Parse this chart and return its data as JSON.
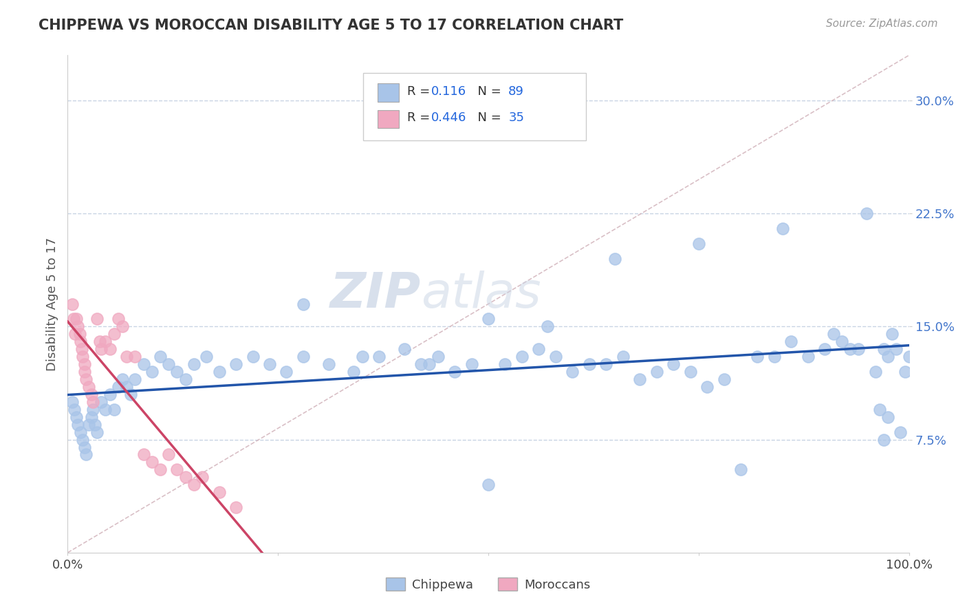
{
  "title": "CHIPPEWA VS MOROCCAN DISABILITY AGE 5 TO 17 CORRELATION CHART",
  "source_text": "Source: ZipAtlas.com",
  "ylabel": "Disability Age 5 to 17",
  "xlim": [
    0,
    1.0
  ],
  "ylim": [
    0.0,
    0.33
  ],
  "xticks": [
    0.0,
    0.25,
    0.5,
    0.75,
    1.0
  ],
  "xticklabels": [
    "0.0%",
    "",
    "",
    "",
    "100.0%"
  ],
  "yticks": [
    0.075,
    0.15,
    0.225,
    0.3
  ],
  "yticklabels": [
    "7.5%",
    "15.0%",
    "22.5%",
    "30.0%"
  ],
  "chippewa_color": "#a8c4e8",
  "moroccan_color": "#f0a8c0",
  "chippewa_line_color": "#2255aa",
  "moroccan_line_color": "#cc4466",
  "legend_R1": "0.116",
  "legend_N1": "89",
  "legend_R2": "0.446",
  "legend_N2": "35",
  "watermark_zip": "ZIP",
  "watermark_atlas": "atlas",
  "background_color": "#ffffff",
  "grid_color": "#c8d4e4",
  "title_color": "#333333",
  "source_color": "#999999",
  "tick_color": "#4477cc",
  "chippewa_x": [
    0.005,
    0.008,
    0.01,
    0.012,
    0.015,
    0.018,
    0.02,
    0.022,
    0.025,
    0.028,
    0.03,
    0.032,
    0.035,
    0.04,
    0.045,
    0.05,
    0.055,
    0.06,
    0.065,
    0.07,
    0.075,
    0.08,
    0.09,
    0.1,
    0.11,
    0.12,
    0.13,
    0.14,
    0.15,
    0.165,
    0.18,
    0.2,
    0.22,
    0.24,
    0.26,
    0.28,
    0.31,
    0.34,
    0.37,
    0.4,
    0.42,
    0.44,
    0.46,
    0.48,
    0.5,
    0.52,
    0.54,
    0.56,
    0.58,
    0.6,
    0.62,
    0.64,
    0.66,
    0.68,
    0.7,
    0.72,
    0.74,
    0.76,
    0.78,
    0.8,
    0.82,
    0.84,
    0.86,
    0.88,
    0.9,
    0.92,
    0.94,
    0.95,
    0.96,
    0.97,
    0.975,
    0.98,
    0.985,
    0.99,
    0.995,
    1.0,
    0.35,
    0.5,
    0.65,
    0.75,
    0.85,
    0.91,
    0.93,
    0.965,
    0.97,
    0.975,
    0.28,
    0.43,
    0.57
  ],
  "chippewa_y": [
    0.1,
    0.095,
    0.09,
    0.085,
    0.08,
    0.075,
    0.07,
    0.065,
    0.085,
    0.09,
    0.095,
    0.085,
    0.08,
    0.1,
    0.095,
    0.105,
    0.095,
    0.11,
    0.115,
    0.11,
    0.105,
    0.115,
    0.125,
    0.12,
    0.13,
    0.125,
    0.12,
    0.115,
    0.125,
    0.13,
    0.12,
    0.125,
    0.13,
    0.125,
    0.12,
    0.13,
    0.125,
    0.12,
    0.13,
    0.135,
    0.125,
    0.13,
    0.12,
    0.125,
    0.045,
    0.125,
    0.13,
    0.135,
    0.13,
    0.12,
    0.125,
    0.125,
    0.13,
    0.115,
    0.12,
    0.125,
    0.12,
    0.11,
    0.115,
    0.055,
    0.13,
    0.13,
    0.14,
    0.13,
    0.135,
    0.14,
    0.135,
    0.225,
    0.12,
    0.135,
    0.13,
    0.145,
    0.135,
    0.08,
    0.12,
    0.13,
    0.13,
    0.155,
    0.195,
    0.205,
    0.215,
    0.145,
    0.135,
    0.095,
    0.075,
    0.09,
    0.165,
    0.125,
    0.15
  ],
  "moroccan_x": [
    0.005,
    0.007,
    0.009,
    0.01,
    0.012,
    0.014,
    0.015,
    0.017,
    0.018,
    0.02,
    0.02,
    0.022,
    0.025,
    0.028,
    0.03,
    0.035,
    0.038,
    0.04,
    0.045,
    0.05,
    0.055,
    0.06,
    0.065,
    0.07,
    0.08,
    0.09,
    0.1,
    0.11,
    0.12,
    0.13,
    0.14,
    0.15,
    0.16,
    0.18,
    0.2
  ],
  "moroccan_y": [
    0.165,
    0.155,
    0.145,
    0.155,
    0.15,
    0.145,
    0.14,
    0.135,
    0.13,
    0.125,
    0.12,
    0.115,
    0.11,
    0.105,
    0.1,
    0.155,
    0.14,
    0.135,
    0.14,
    0.135,
    0.145,
    0.155,
    0.15,
    0.13,
    0.13,
    0.065,
    0.06,
    0.055,
    0.065,
    0.055,
    0.05,
    0.045,
    0.05,
    0.04,
    0.03
  ]
}
